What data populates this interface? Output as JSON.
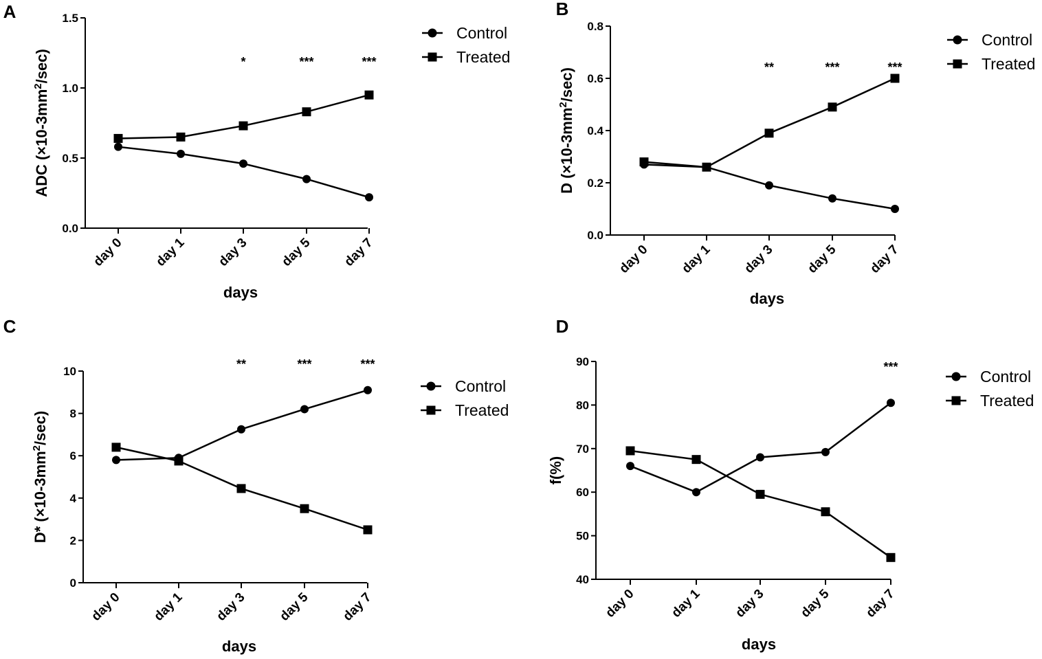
{
  "chart_data": [
    {
      "panel": "A",
      "type": "line",
      "title": "",
      "xlabel": "days",
      "ylabel": "ADC (×10-3mm²/sec)",
      "ylabel_parts": [
        "ADC (×10-3mm",
        "2",
        "/sec)"
      ],
      "categories": [
        "day 0",
        "day 1",
        "day 3",
        "day 5",
        "day 7"
      ],
      "ylim": [
        0,
        1.5
      ],
      "yticks": [
        0,
        0.5,
        1.0,
        1.5
      ],
      "ytick_labels": [
        "0.0",
        "0.5",
        "1.0",
        "1.5"
      ],
      "series": [
        {
          "name": "Control",
          "marker": "circle",
          "values": [
            0.58,
            0.53,
            0.46,
            0.35,
            0.22
          ]
        },
        {
          "name": "Treated",
          "marker": "square",
          "values": [
            0.64,
            0.65,
            0.73,
            0.83,
            0.95
          ]
        }
      ],
      "significance": [
        "",
        "",
        "*",
        "***",
        "***"
      ],
      "legend_position": "top-right",
      "grid": false
    },
    {
      "panel": "B",
      "type": "line",
      "title": "",
      "xlabel": "days",
      "ylabel": "D (×10-3mm²/sec)",
      "ylabel_parts": [
        "D (×10-3mm",
        "2",
        "/sec)"
      ],
      "categories": [
        "day 0",
        "day 1",
        "day 3",
        "day 5",
        "day 7"
      ],
      "ylim": [
        0,
        0.8
      ],
      "yticks": [
        0,
        0.2,
        0.4,
        0.6,
        0.8
      ],
      "ytick_labels": [
        "0.0",
        "0.2",
        "0.4",
        "0.6",
        "0.8"
      ],
      "series": [
        {
          "name": "Control",
          "marker": "circle",
          "values": [
            0.27,
            0.26,
            0.19,
            0.14,
            0.1
          ]
        },
        {
          "name": "Treated",
          "marker": "square",
          "values": [
            0.28,
            0.26,
            0.39,
            0.49,
            0.6
          ]
        }
      ],
      "significance": [
        "",
        "",
        "**",
        "***",
        "***"
      ],
      "legend_position": "top-right",
      "grid": false
    },
    {
      "panel": "C",
      "type": "line",
      "title": "",
      "xlabel": "days",
      "ylabel": "D* (×10-3mm²/sec)",
      "ylabel_parts": [
        "D* (×10-3mm",
        "2",
        "/sec)"
      ],
      "categories": [
        "day 0",
        "day 1",
        "day 3",
        "day 5",
        "day 7"
      ],
      "ylim": [
        0,
        10
      ],
      "yticks": [
        0,
        2,
        4,
        6,
        8,
        10
      ],
      "ytick_labels": [
        "0",
        "2",
        "4",
        "6",
        "8",
        "10"
      ],
      "series": [
        {
          "name": "Control",
          "marker": "circle",
          "values": [
            5.8,
            5.9,
            7.25,
            8.2,
            9.1
          ]
        },
        {
          "name": "Treated",
          "marker": "square",
          "values": [
            6.4,
            5.75,
            4.45,
            3.5,
            2.5
          ]
        }
      ],
      "significance": [
        "",
        "",
        "**",
        "***",
        "***"
      ],
      "legend_position": "top-right",
      "grid": false
    },
    {
      "panel": "D",
      "type": "line",
      "title": "",
      "xlabel": "days",
      "ylabel": "f(%)",
      "ylabel_parts": [
        "f(%)",
        "",
        ""
      ],
      "categories": [
        "day 0",
        "day 1",
        "day 3",
        "day 5",
        "day 7"
      ],
      "ylim": [
        40,
        90
      ],
      "yticks": [
        40,
        50,
        60,
        70,
        80,
        90
      ],
      "ytick_labels": [
        "40",
        "50",
        "60",
        "70",
        "80",
        "90"
      ],
      "series": [
        {
          "name": "Control",
          "marker": "circle",
          "values": [
            66,
            60,
            68,
            69.2,
            80.5
          ]
        },
        {
          "name": "Treated",
          "marker": "square",
          "values": [
            69.5,
            67.5,
            59.5,
            55.5,
            45
          ]
        }
      ],
      "significance": [
        "",
        "",
        "",
        "",
        "***"
      ],
      "legend_position": "top-right",
      "grid": false
    }
  ]
}
